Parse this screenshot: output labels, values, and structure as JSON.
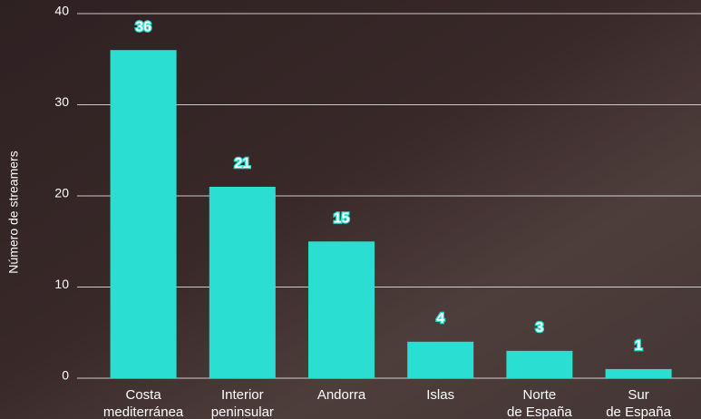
{
  "chart_data": {
    "type": "bar",
    "y_label": "Número de streamers",
    "categories": [
      "Costa mediterránea",
      "Interior peninsular",
      "Andorra",
      "Islas",
      "Norte de España",
      "Sur de España"
    ],
    "values": [
      36,
      21,
      15,
      4,
      3,
      1
    ],
    "color": "#2adfd2",
    "ylim": [
      0,
      40
    ],
    "yticks": [
      0,
      10,
      20,
      30,
      40
    ],
    "grid": true
  }
}
